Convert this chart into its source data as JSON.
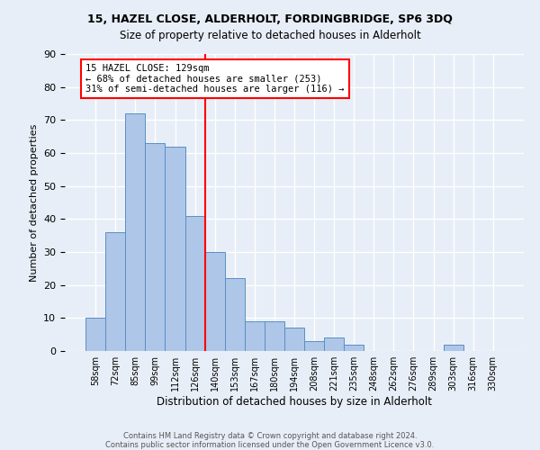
{
  "title1": "15, HAZEL CLOSE, ALDERHOLT, FORDINGBRIDGE, SP6 3DQ",
  "title2": "Size of property relative to detached houses in Alderholt",
  "xlabel": "Distribution of detached houses by size in Alderholt",
  "ylabel": "Number of detached properties",
  "footnote": "Contains HM Land Registry data © Crown copyright and database right 2024.\nContains public sector information licensed under the Open Government Licence v3.0.",
  "bin_labels": [
    "58sqm",
    "72sqm",
    "85sqm",
    "99sqm",
    "112sqm",
    "126sqm",
    "140sqm",
    "153sqm",
    "167sqm",
    "180sqm",
    "194sqm",
    "208sqm",
    "221sqm",
    "235sqm",
    "248sqm",
    "262sqm",
    "276sqm",
    "289sqm",
    "303sqm",
    "316sqm",
    "330sqm"
  ],
  "bar_values": [
    10,
    36,
    72,
    63,
    62,
    41,
    30,
    22,
    9,
    9,
    7,
    3,
    4,
    2,
    0,
    0,
    0,
    0,
    2,
    0,
    0
  ],
  "bar_color": "#aec6e8",
  "bar_edge_color": "#5a8fc2",
  "vline_x": 5.5,
  "vline_color": "red",
  "annotation_text": "15 HAZEL CLOSE: 129sqm\n← 68% of detached houses are smaller (253)\n31% of semi-detached houses are larger (116) →",
  "annotation_box_color": "white",
  "annotation_box_edge_color": "red",
  "ylim": [
    0,
    90
  ],
  "yticks": [
    0,
    10,
    20,
    30,
    40,
    50,
    60,
    70,
    80,
    90
  ],
  "background_color": "#e8eef7",
  "grid_color": "white"
}
